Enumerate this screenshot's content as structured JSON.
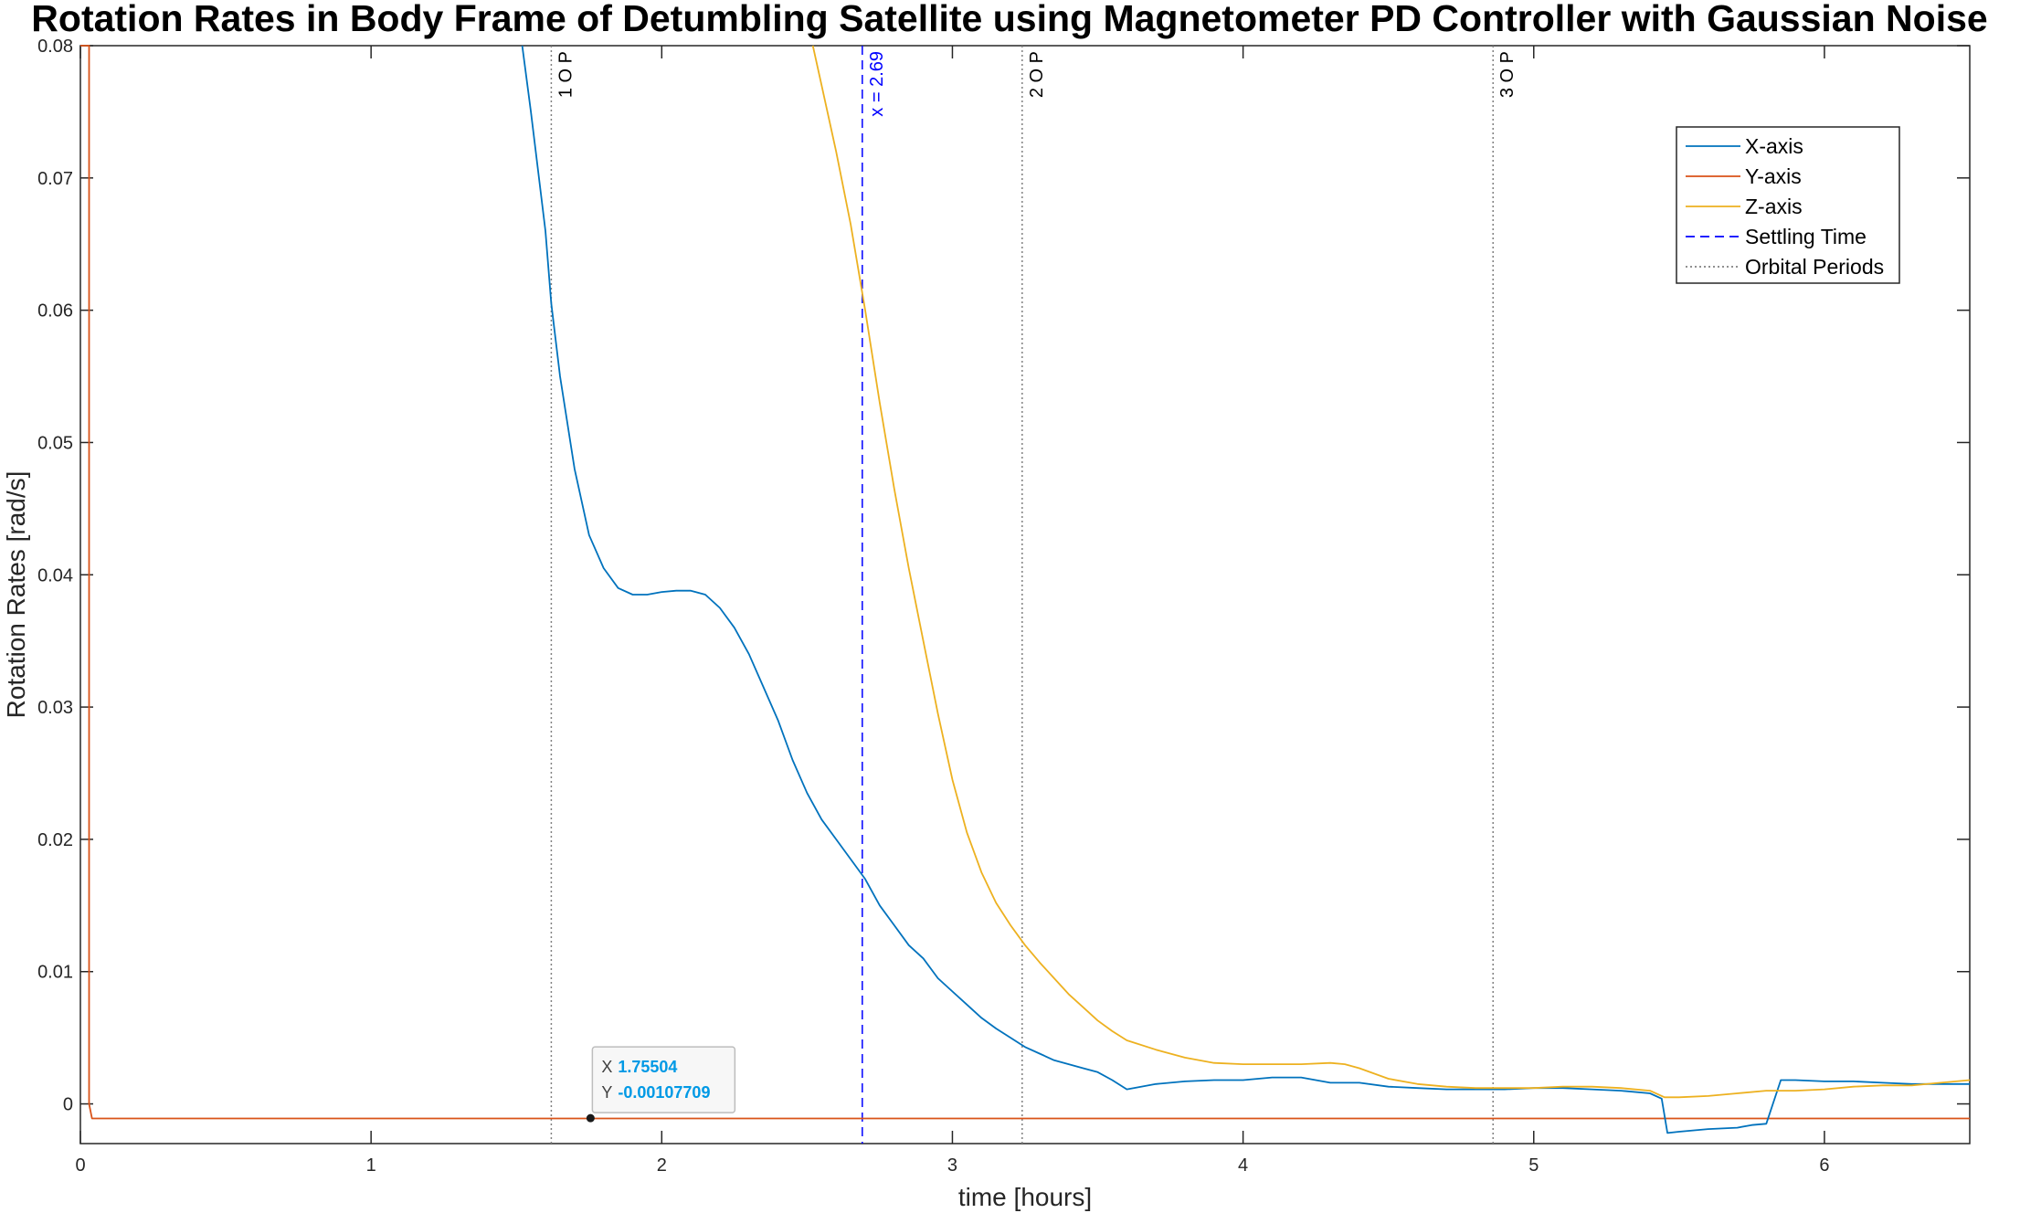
{
  "chart_data": {
    "type": "line",
    "title": "Rotation Rates in Body Frame of Detumbling Satellite using Magnetometer PD Controller with Gaussian Noise",
    "xlabel": "time [hours]",
    "ylabel": "Rotation Rates  [rad/s]",
    "xlim": [
      0,
      6.5
    ],
    "ylim": [
      -0.003,
      0.08
    ],
    "xticks": [
      0,
      1,
      2,
      3,
      4,
      5,
      6
    ],
    "xtick_labels": [
      "0",
      "1",
      "2",
      "3",
      "4",
      "5",
      "6"
    ],
    "yticks": [
      0,
      0.01,
      0.02,
      0.03,
      0.04,
      0.05,
      0.06,
      0.07,
      0.08
    ],
    "ytick_labels": [
      "0",
      "0.01",
      "0.02",
      "0.03",
      "0.04",
      "0.05",
      "0.06",
      "0.07",
      "0.08"
    ],
    "grid": false,
    "legend_position": "top-right",
    "series": [
      {
        "name": "X-axis",
        "color": "#0072BD",
        "x": [
          1.52,
          1.55,
          1.6,
          1.62,
          1.65,
          1.7,
          1.75,
          1.8,
          1.85,
          1.9,
          1.95,
          2.0,
          2.05,
          2.1,
          2.15,
          2.2,
          2.25,
          2.3,
          2.35,
          2.4,
          2.45,
          2.5,
          2.55,
          2.6,
          2.65,
          2.7,
          2.75,
          2.8,
          2.85,
          2.9,
          2.95,
          3.0,
          3.05,
          3.1,
          3.15,
          3.2,
          3.25,
          3.3,
          3.35,
          3.4,
          3.45,
          3.5,
          3.55,
          3.6,
          3.7,
          3.8,
          3.9,
          4.0,
          4.1,
          4.2,
          4.3,
          4.4,
          4.5,
          4.6,
          4.7,
          4.8,
          4.9,
          5.0,
          5.1,
          5.2,
          5.3,
          5.4,
          5.44,
          5.46,
          5.5,
          5.6,
          5.7,
          5.75,
          5.8,
          5.85,
          5.9,
          6.0,
          6.1,
          6.2,
          6.3,
          6.4,
          6.5
        ],
        "values": [
          0.08,
          0.075,
          0.066,
          0.0605,
          0.055,
          0.048,
          0.043,
          0.0405,
          0.039,
          0.0385,
          0.0385,
          0.0387,
          0.0388,
          0.0388,
          0.0385,
          0.0375,
          0.036,
          0.034,
          0.0315,
          0.029,
          0.026,
          0.0235,
          0.0215,
          0.02,
          0.0185,
          0.017,
          0.015,
          0.0135,
          0.012,
          0.011,
          0.0095,
          0.0085,
          0.0075,
          0.0065,
          0.0057,
          0.005,
          0.0043,
          0.0038,
          0.0033,
          0.003,
          0.0027,
          0.0024,
          0.0018,
          0.0011,
          0.0015,
          0.0017,
          0.0018,
          0.0018,
          0.002,
          0.002,
          0.0016,
          0.0016,
          0.0013,
          0.0012,
          0.0011,
          0.0011,
          0.0011,
          0.0012,
          0.0012,
          0.0011,
          0.001,
          0.0008,
          0.0004,
          -0.0022,
          -0.0021,
          -0.0019,
          -0.0018,
          -0.0016,
          -0.0015,
          0.0018,
          0.0018,
          0.0017,
          0.0017,
          0.0016,
          0.0015,
          0.0015,
          0.0015
        ]
      },
      {
        "name": "Y-axis",
        "color": "#D95319",
        "x": [
          0,
          0.03,
          0.03,
          0.04,
          0.05,
          6.5
        ],
        "values": [
          0.08,
          0.08,
          0.0,
          -0.0011,
          -0.0011,
          -0.0011
        ]
      },
      {
        "name": "Z-axis",
        "color": "#EDB120",
        "x": [
          2.52,
          2.55,
          2.6,
          2.65,
          2.7,
          2.75,
          2.8,
          2.85,
          2.9,
          2.95,
          3.0,
          3.05,
          3.1,
          3.15,
          3.2,
          3.25,
          3.3,
          3.35,
          3.4,
          3.45,
          3.5,
          3.55,
          3.6,
          3.7,
          3.8,
          3.9,
          4.0,
          4.1,
          4.2,
          4.3,
          4.35,
          4.4,
          4.5,
          4.6,
          4.7,
          4.8,
          4.9,
          5.0,
          5.1,
          5.2,
          5.3,
          5.4,
          5.45,
          5.5,
          5.6,
          5.7,
          5.8,
          5.9,
          6.0,
          6.1,
          6.2,
          6.3,
          6.4,
          6.5
        ],
        "values": [
          0.08,
          0.077,
          0.072,
          0.0665,
          0.06,
          0.053,
          0.0465,
          0.0405,
          0.035,
          0.0295,
          0.0245,
          0.0205,
          0.0175,
          0.0152,
          0.0135,
          0.012,
          0.0107,
          0.0095,
          0.0083,
          0.0073,
          0.0063,
          0.0055,
          0.0048,
          0.0041,
          0.0035,
          0.0031,
          0.003,
          0.003,
          0.003,
          0.0031,
          0.003,
          0.0027,
          0.0019,
          0.0015,
          0.0013,
          0.0012,
          0.0012,
          0.0012,
          0.0013,
          0.0013,
          0.0012,
          0.001,
          0.0005,
          0.0005,
          0.0006,
          0.0008,
          0.001,
          0.001,
          0.0011,
          0.0013,
          0.0014,
          0.0014,
          0.0016,
          0.0018
        ]
      }
    ],
    "settling_time": {
      "name": "Settling Time",
      "x": 2.69,
      "label": "x = 2.69",
      "color": "#0000FF"
    },
    "orbital_periods": {
      "name": "Orbital Periods",
      "x": [
        1.62,
        3.24,
        4.86
      ],
      "labels": [
        "1 O P",
        "2 O P",
        "3 O P"
      ],
      "color": "#808080"
    },
    "datatip": {
      "x_label": "X",
      "x_value": "1.75504",
      "y_label": "Y",
      "y_value": "-0.00107709",
      "x": 1.75504,
      "y": -0.00107709
    }
  }
}
